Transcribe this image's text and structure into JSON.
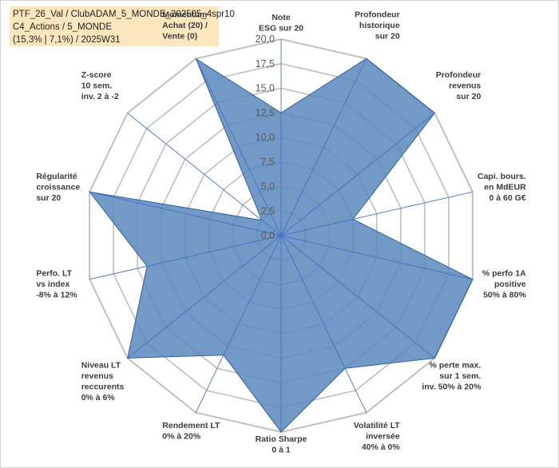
{
  "title_box": {
    "line1": "PTF_26_Val / ClubADAM_5_MONDE_202505_4spr10",
    "line2": "C4_Actions / 5_MONDE",
    "line3": "(15,3% | 7,1%) / 2025W31"
  },
  "chart_data": {
    "type": "radar",
    "rlim": [
      0,
      20
    ],
    "ticks": [
      "0,0",
      "2,5",
      "5,0",
      "7,5",
      "10,0",
      "12,5",
      "15,0",
      "17,5",
      "20,0"
    ],
    "grid": true,
    "colors": {
      "fill": "#5b87bd",
      "stroke": "#2e5f9c",
      "grid": "#bfbfbf",
      "spoke": "#4472c4"
    },
    "axes": [
      {
        "label": [
          "Note",
          "ESG sur 20"
        ],
        "value": 12.5
      },
      {
        "label": [
          "Profondeur",
          "historique",
          "sur 20"
        ],
        "value": 20
      },
      {
        "label": [
          "Profondeur",
          "revenus",
          "sur 20"
        ],
        "value": 20
      },
      {
        "label": [
          "Capi. bours.",
          "en MdEUR",
          "0 à 60 G€"
        ],
        "value": 7.5
      },
      {
        "label": [
          "% perfo 1A",
          "positive",
          "50% à 80%"
        ],
        "value": 20
      },
      {
        "label": [
          "% perte max.",
          "sur 1 sem.",
          "inv. 50% à 20%"
        ],
        "value": 20
      },
      {
        "label": [
          "Volatilité LT",
          "inversée",
          "40% à 0%"
        ],
        "value": 15
      },
      {
        "label": [
          "Ratio Sharpe",
          "0 à 1"
        ],
        "value": 20
      },
      {
        "label": [
          "Rendement LT",
          "0% à 20%"
        ],
        "value": 13.5
      },
      {
        "label": [
          "Niveau LT",
          "revenus",
          "reccurents",
          "0% à 6%"
        ],
        "value": 20
      },
      {
        "label": [
          "Perfo. LT",
          "vs index",
          "-8% à 12%"
        ],
        "value": 14
      },
      {
        "label": [
          "Régularité",
          "croissance",
          "sur 20"
        ],
        "value": 20
      },
      {
        "label": [
          "Z-score",
          "10 sem.",
          "inv. 2 à -2"
        ],
        "value": 2.5
      },
      {
        "label": [
          "Momentum",
          "Achat (20) /",
          "Vente (0)"
        ],
        "value": 20
      }
    ]
  }
}
